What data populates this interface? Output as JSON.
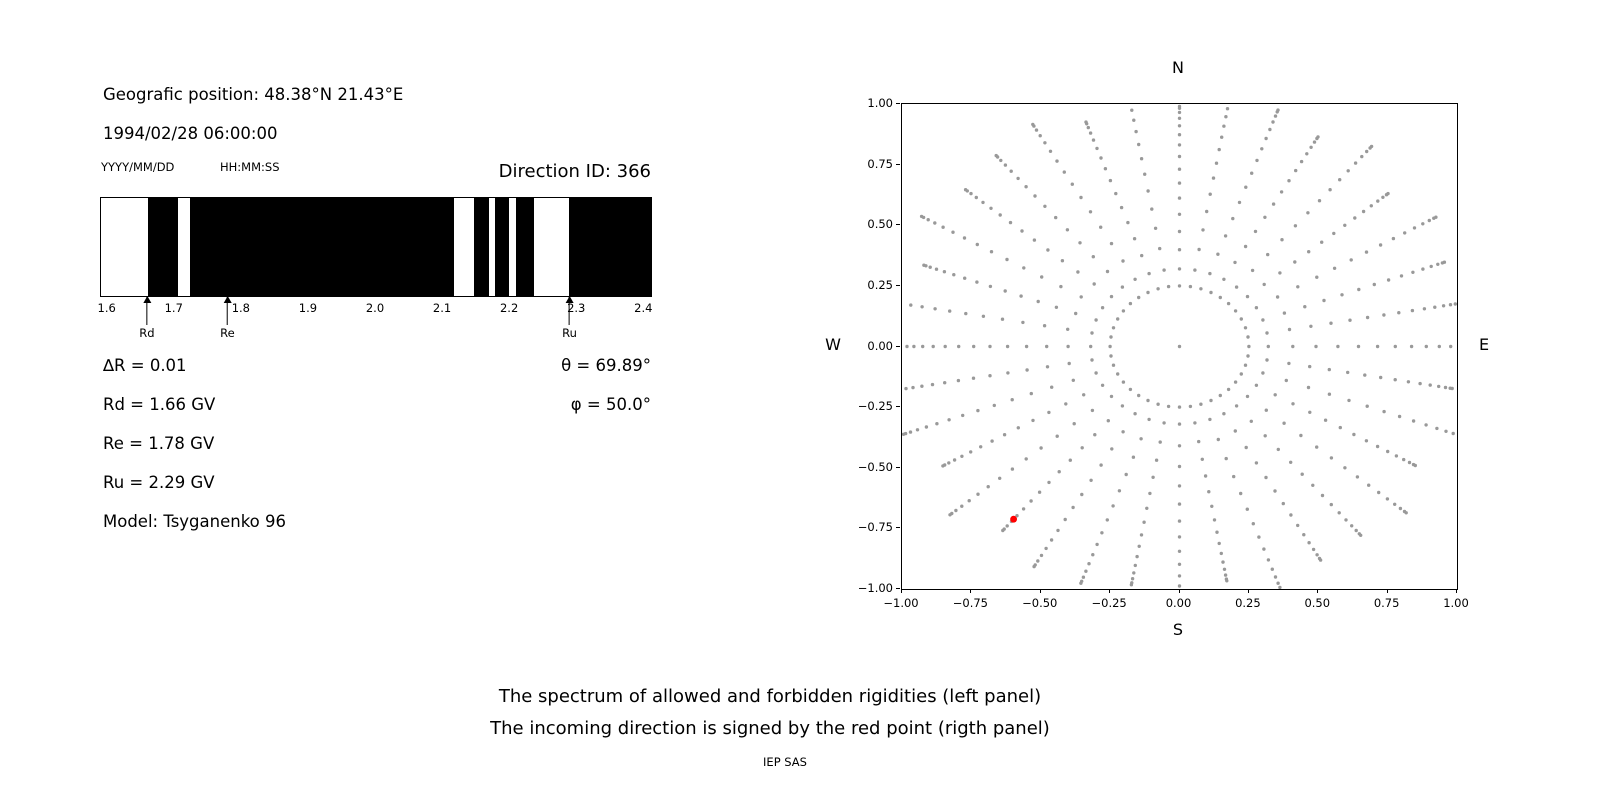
{
  "header": {
    "geo_position": "Geografic position: 48.38°N 21.43°E",
    "datetime": "1994/02/28 06:00:00",
    "date_format_label": "YYYY/MM/DD",
    "time_format_label": "HH:MM:SS",
    "direction_id": "Direction ID: 366"
  },
  "parameters": {
    "delta_r": "∆R = 0.01",
    "rd": "Rd = 1.66 GV",
    "re": "Re = 1.78 GV",
    "ru": "Ru = 2.29 GV",
    "model": "Model: Tsyganenko 96",
    "theta": "θ = 69.89°",
    "phi": "φ = 50.0°"
  },
  "captions": {
    "line1": "The spectrum of allowed and forbidden rigidities (left panel)",
    "line2": "The incoming direction is signed by the red point (rigth panel)",
    "footer": "IEP SAS"
  },
  "chart_data": [
    {
      "type": "bar",
      "description": "Rigidity spectrum barcode: black bands = forbidden rigidities, white = allowed (GV)",
      "xlim": [
        1.59,
        2.41
      ],
      "xtick_labels": [
        "1.6",
        "1.7",
        "1.8",
        "1.9",
        "2.0",
        "2.1",
        "2.2",
        "2.3",
        "2.4"
      ],
      "bar_color": "#000000",
      "forbidden_segments_gv": [
        [
          1.66,
          1.705
        ],
        [
          1.723,
          2.117
        ],
        [
          2.146,
          2.168
        ],
        [
          2.177,
          2.198
        ],
        [
          2.208,
          2.235
        ],
        [
          2.287,
          2.41
        ]
      ],
      "markers": [
        {
          "label": "Rd",
          "value_gv": 1.66
        },
        {
          "label": "Re",
          "value_gv": 1.78
        },
        {
          "label": "Ru",
          "value_gv": 2.29
        }
      ]
    },
    {
      "type": "scatter",
      "description": "Asymptotic directions: gray dots form 36 radial spokes with an inner ring (r=0.25); red point marks the incoming direction",
      "xlim": [
        -1,
        1
      ],
      "ylim": [
        -1,
        1
      ],
      "xtick_values": [
        -1,
        -0.75,
        -0.5,
        -0.25,
        0,
        0.25,
        0.5,
        0.75,
        1
      ],
      "xtick_labels": [
        "−1.00",
        "−0.75",
        "−0.50",
        "−0.25",
        "0.00",
        "0.25",
        "0.50",
        "0.75",
        "1.00"
      ],
      "ytick_values": [
        1,
        0.75,
        0.5,
        0.25,
        0,
        -0.25,
        -0.5,
        -0.75,
        -1
      ],
      "ytick_labels": [
        "1.00",
        "0.75",
        "0.50",
        "0.25",
        "0.00",
        "−0.25",
        "−0.50",
        "−0.75",
        "−1.00"
      ],
      "compass": {
        "top": "N",
        "bottom": "S",
        "left": "W",
        "right": "E"
      },
      "dot_color": "#999999",
      "pattern": {
        "center_dot": true,
        "ring": {
          "radius": 0.25,
          "count": 40
        },
        "spokes": {
          "count": 36,
          "inner_radius": 0.32,
          "outer_radius": 1.03,
          "outer_variation": 0.05,
          "points_per_spoke": 15,
          "tip_cluster_power": 1.7
        }
      },
      "highlight_point": {
        "x": -0.598,
        "y": -0.712,
        "color": "#ff0000"
      }
    }
  ]
}
